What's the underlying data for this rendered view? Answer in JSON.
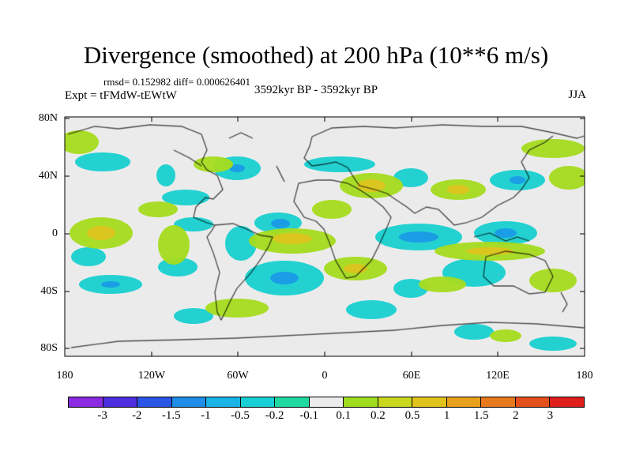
{
  "title": "Divergence (smoothed) at 200 hPa (10**6 m/s)",
  "stats": "rmsd= 0.152982 diff= 0.000626401",
  "experiment": "Expt = tFMdW-tEWtW",
  "period": "3592kyr BP - 3592kyr BP",
  "season": "JJA",
  "y_ticks": [
    "80N",
    "40N",
    "0",
    "40S",
    "80S"
  ],
  "x_ticks": [
    "180",
    "120W",
    "60W",
    "0",
    "60E",
    "120E",
    "180"
  ],
  "colorbar": {
    "labels": [
      "-3",
      "-2",
      "-1.5",
      "-1",
      "-0.5",
      "-0.2",
      "-0.1",
      "0.1",
      "0.2",
      "0.5",
      "1",
      "1.5",
      "2",
      "3"
    ],
    "colors": [
      "#8a2be2",
      "#4d2fe0",
      "#2a55e6",
      "#1e8de8",
      "#19b3e6",
      "#19cfd6",
      "#1fd9a0",
      "#ececec",
      "#9fdc1e",
      "#c9d81e",
      "#e2c21c",
      "#e8a11c",
      "#e8781c",
      "#e4501c",
      "#e01f1c"
    ]
  }
}
